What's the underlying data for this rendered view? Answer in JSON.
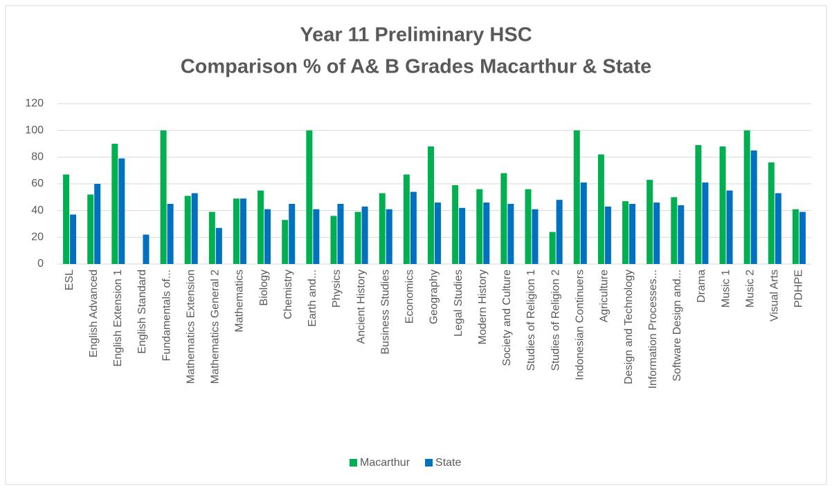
{
  "chart_data": {
    "type": "bar",
    "title": "Year 11 Preliminary HSC",
    "subtitle": "Comparison % of A& B Grades Macarthur & State",
    "categories": [
      "ESL",
      "English Advanced",
      "English Extension 1",
      "English Standard",
      "Fundamentals of...",
      "Mathematics Extension",
      "Mathematics General 2",
      "Mathematics",
      "Biology",
      "Chemistry",
      "Earth and...",
      "Physics",
      "Ancient History",
      "Business Studies",
      "Economics",
      "Geography",
      "Legal Studies",
      "Modern History",
      "Society and Culture",
      "Studies of Religion 1",
      "Studies of Religion 2",
      "Indonesian Continuers",
      "Agriculture",
      "Design and Technology",
      "Information Processes...",
      "Software Design and...",
      "Drama",
      "Music 1",
      "Music 2",
      "Visual Arts",
      "PDHPE"
    ],
    "series": [
      {
        "name": "Macarthur",
        "color": "#00b050",
        "values": [
          67,
          52,
          90,
          null,
          100,
          51,
          39,
          49,
          55,
          33,
          100,
          36,
          39,
          53,
          67,
          88,
          59,
          56,
          68,
          56,
          24,
          100,
          82,
          47,
          63,
          50,
          89,
          88,
          100,
          76,
          41
        ]
      },
      {
        "name": "State",
        "color": "#0070c0",
        "values": [
          37,
          60,
          79,
          22,
          45,
          53,
          27,
          49,
          41,
          45,
          41,
          45,
          43,
          41,
          54,
          46,
          42,
          46,
          45,
          41,
          48,
          61,
          43,
          45,
          46,
          44,
          61,
          55,
          85,
          53,
          39
        ]
      }
    ],
    "ylim": [
      0,
      120
    ],
    "yticks": [
      0,
      20,
      40,
      60,
      80,
      100,
      120
    ],
    "grid": true,
    "legend": "bottom"
  }
}
